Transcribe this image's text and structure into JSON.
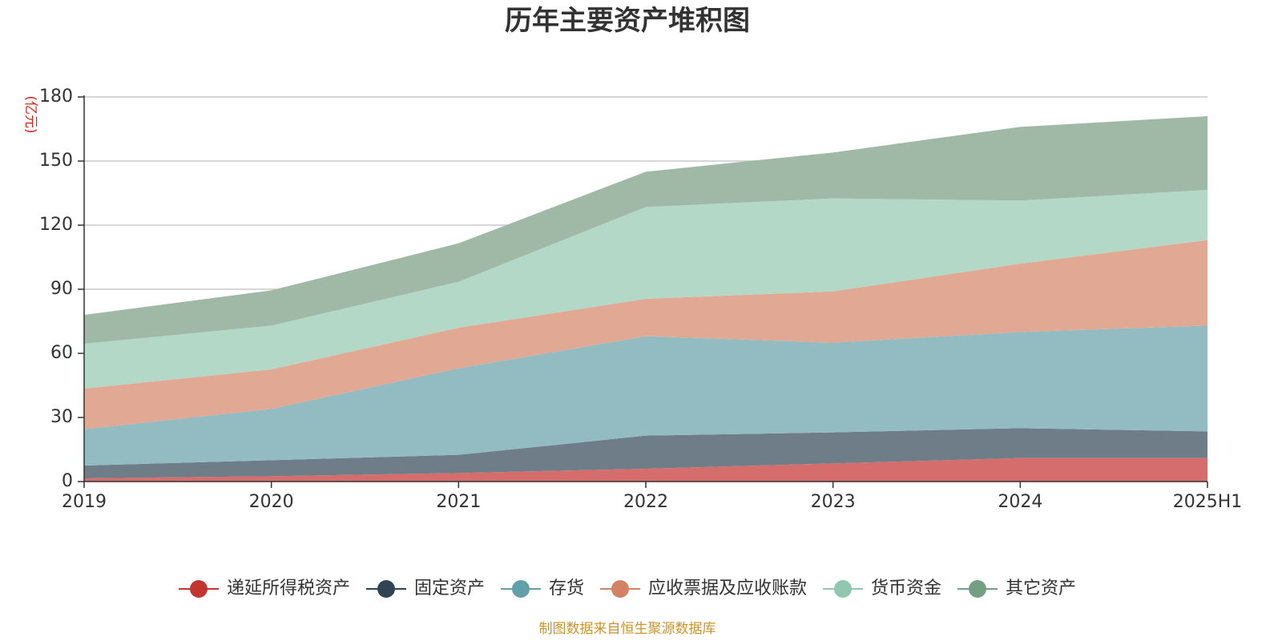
{
  "chart_data": {
    "type": "area",
    "stacked": true,
    "title": "历年主要资产堆积图",
    "unit_label": "(亿元)",
    "source": "制图数据来自恒生聚源数据库",
    "categories": [
      "2019",
      "2020",
      "2021",
      "2022",
      "2023",
      "2024",
      "2025H1"
    ],
    "ylim": [
      0,
      180
    ],
    "yticks": [
      0,
      30,
      60,
      90,
      120,
      150,
      180
    ],
    "grid": true,
    "legend_position": "bottom",
    "series": [
      {
        "name": "递延所得税资产",
        "color": "#c23531",
        "fill": "#d46d6b",
        "values": [
          1.5,
          2.5,
          4,
          6,
          8.5,
          11,
          11
        ]
      },
      {
        "name": "固定资产",
        "color": "#2f4554",
        "fill": "#6f7d88",
        "values": [
          6,
          7.5,
          8.5,
          15.5,
          14.5,
          14,
          12.5
        ]
      },
      {
        "name": "存货",
        "color": "#61a0a8",
        "fill": "#92bcc2",
        "values": [
          17,
          24,
          40.5,
          46.5,
          42,
          45,
          49.5
        ]
      },
      {
        "name": "应收票据及应收账款",
        "color": "#d48265",
        "fill": "#e1a893",
        "values": [
          19,
          18.5,
          19,
          17.5,
          24,
          32,
          40
        ]
      },
      {
        "name": "货币资金",
        "color": "#91c7ae",
        "fill": "#b3d8c8",
        "values": [
          21,
          20.5,
          21.5,
          43,
          43.5,
          29.5,
          23.5
        ]
      },
      {
        "name": "其它资产",
        "color": "#749f83",
        "fill": "#9fb9a6",
        "values": [
          13.5,
          16.5,
          18,
          16.5,
          21.5,
          34.5,
          34.5
        ]
      }
    ]
  }
}
